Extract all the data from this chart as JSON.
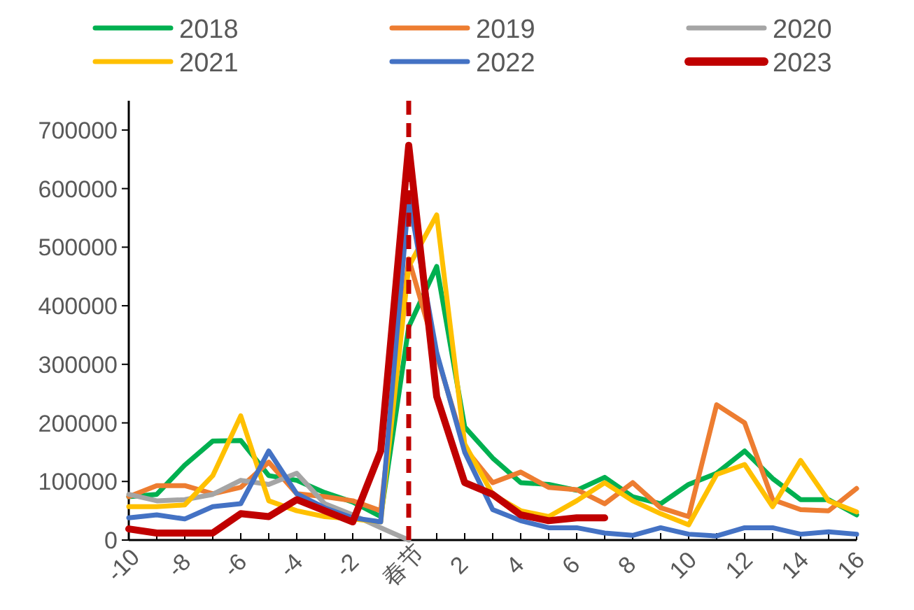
{
  "chart_data": {
    "type": "line",
    "x": [
      -10,
      -9,
      -8,
      -7,
      -6,
      -5,
      -4,
      -3,
      -2,
      -1,
      0,
      1,
      2,
      3,
      4,
      5,
      6,
      7,
      8,
      9,
      10,
      11,
      12,
      13,
      14,
      15,
      16
    ],
    "series": [
      {
        "name": "2018",
        "color": "#00b050",
        "values": [
          74000,
          78000,
          128000,
          169000,
          170000,
          110000,
          102000,
          81000,
          65000,
          40000,
          364000,
          467000,
          193000,
          140000,
          98000,
          95000,
          85000,
          107000,
          74000,
          62000,
          95000,
          114000,
          152000,
          105000,
          69000,
          69000,
          43000
        ]
      },
      {
        "name": "2019",
        "color": "#ed7d31",
        "values": [
          74000,
          93000,
          93000,
          79000,
          90000,
          133000,
          79000,
          74000,
          67000,
          50000,
          480000,
          316000,
          157000,
          98000,
          116000,
          90000,
          86000,
          62000,
          98000,
          55000,
          40000,
          231000,
          200000,
          69000,
          52000,
          50000,
          88000
        ]
      },
      {
        "name": "2020",
        "color": "#a5a5a5",
        "values": [
          78000,
          67000,
          69000,
          78000,
          102000,
          95000,
          114000,
          62000,
          43000,
          21000,
          0,
          null,
          null,
          null,
          null,
          null,
          null,
          null,
          null,
          null,
          null,
          null,
          null,
          null,
          null,
          null,
          null
        ]
      },
      {
        "name": "2021",
        "color": "#ffc000",
        "values": [
          57000,
          57000,
          60000,
          110000,
          212000,
          67000,
          50000,
          40000,
          36000,
          31000,
          467000,
          555000,
          164000,
          78000,
          50000,
          40000,
          67000,
          98000,
          67000,
          45000,
          26000,
          112000,
          129000,
          57000,
          136000,
          67000,
          48000
        ]
      },
      {
        "name": "2022",
        "color": "#4472c4",
        "values": [
          38000,
          43000,
          36000,
          57000,
          62000,
          152000,
          79000,
          55000,
          38000,
          31000,
          586000,
          320000,
          150000,
          52000,
          33000,
          21000,
          21000,
          12000,
          8000,
          21000,
          10000,
          7000,
          21000,
          21000,
          10000,
          14000,
          10000
        ]
      },
      {
        "name": "2023",
        "color": "#c00000",
        "values": [
          19000,
          12000,
          12000,
          12000,
          45000,
          40000,
          69000,
          50000,
          31000,
          152000,
          674000,
          245000,
          98000,
          78000,
          43000,
          33000,
          38000,
          38000,
          null,
          null,
          null,
          null,
          null,
          null,
          null,
          null,
          null
        ]
      }
    ],
    "xlim": [
      -10,
      16
    ],
    "xticks": [
      -10,
      {
        "value": -9,
        "label": null
      },
      -8,
      {
        "value": -7,
        "label": null
      },
      -6,
      {
        "value": -5,
        "label": null
      },
      -4,
      {
        "value": -3,
        "label": null
      },
      -2,
      {
        "value": -1,
        "label": null
      },
      {
        "value": 0,
        "label": "春节"
      },
      {
        "value": 1,
        "label": null
      },
      2,
      {
        "value": 3,
        "label": null
      },
      4,
      {
        "value": 5,
        "label": null
      },
      6,
      {
        "value": 7,
        "label": null
      },
      8,
      {
        "value": 9,
        "label": null
      },
      10,
      {
        "value": 11,
        "label": null
      },
      12,
      {
        "value": 13,
        "label": null
      },
      14,
      {
        "value": 15,
        "label": null
      },
      16
    ],
    "ylim": [
      0,
      750000
    ],
    "yticks": [
      0,
      100000,
      200000,
      300000,
      400000,
      500000,
      600000,
      700000
    ],
    "ref_lines": [
      {
        "axis": "x",
        "value": 0,
        "color": "#c00000",
        "line_style": "dashed"
      }
    ],
    "legend": "top",
    "grid": false
  }
}
